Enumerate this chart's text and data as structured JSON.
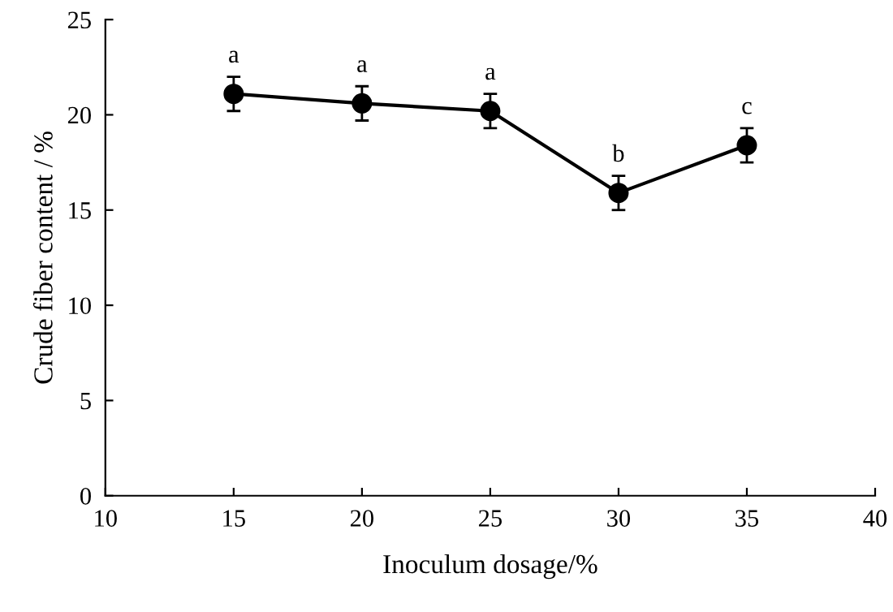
{
  "chart_data": {
    "type": "line",
    "xlabel": "Inoculum dosage/%",
    "ylabel": "Crude fiber content / %",
    "x": [
      15,
      20,
      25,
      30,
      35
    ],
    "series": [
      {
        "color": "#000000",
        "values": [
          21.1,
          20.6,
          20.2,
          15.9,
          18.4
        ],
        "errors": [
          0.9,
          0.9,
          0.9,
          0.9,
          0.9
        ]
      }
    ],
    "xlim": [
      10,
      40
    ],
    "xticks": [
      10,
      15,
      20,
      25,
      30,
      35,
      40
    ],
    "ylim": [
      0,
      25
    ],
    "yticks": [
      0,
      5,
      10,
      15,
      20,
      25
    ],
    "marker": "circle",
    "line_style": "solid",
    "grid": false,
    "annotations": [
      {
        "text": "a",
        "x": 15,
        "y": 21.1
      },
      {
        "text": "a",
        "x": 20,
        "y": 20.6
      },
      {
        "text": "a",
        "x": 25,
        "y": 20.2
      },
      {
        "text": "b",
        "x": 30,
        "y": 15.9
      },
      {
        "text": "c",
        "x": 35,
        "y": 18.4
      }
    ]
  }
}
